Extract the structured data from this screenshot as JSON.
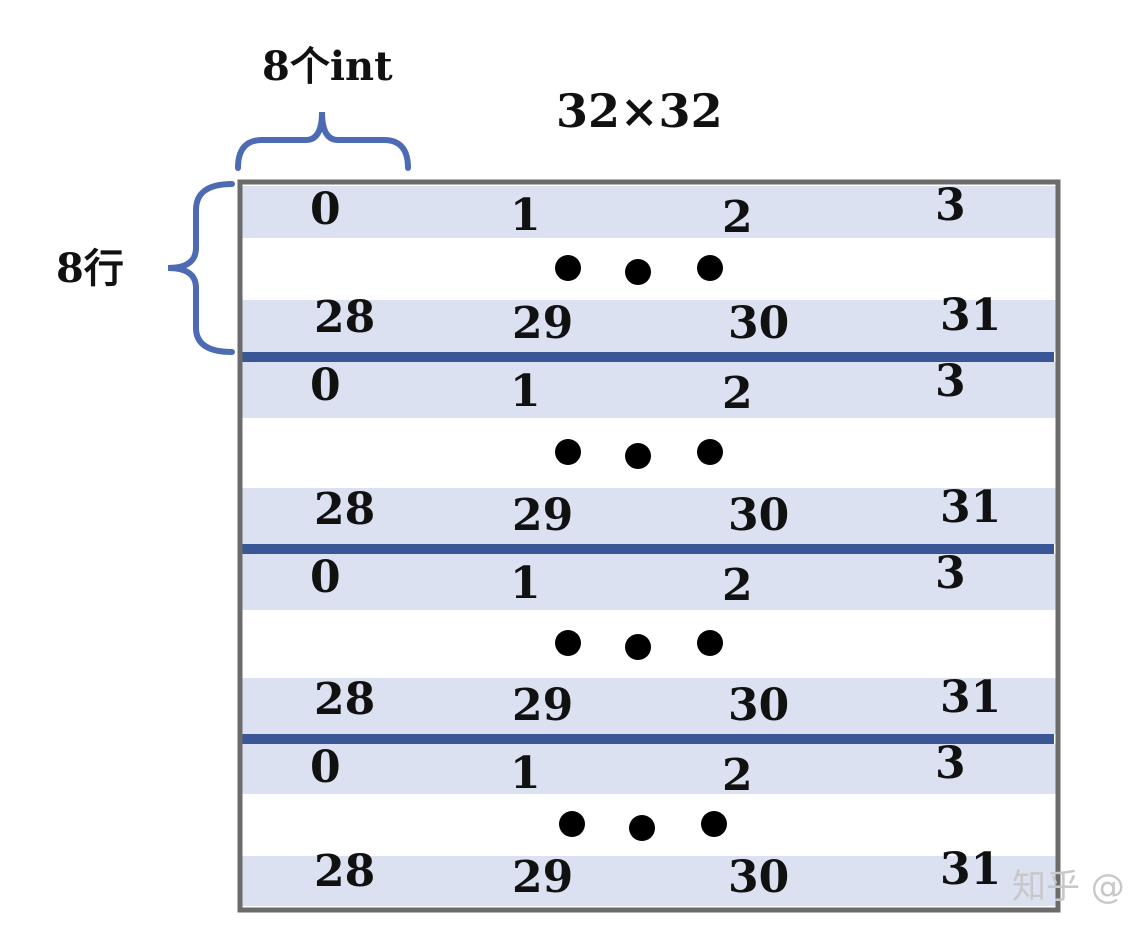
{
  "diagram": {
    "title": "32×32",
    "col_group_label": "8个int",
    "row_group_label": "8行",
    "blocks": [
      {
        "top_row": [
          "0",
          "1",
          "2",
          "3"
        ],
        "bottom_row": [
          "28",
          "29",
          "30",
          "31"
        ]
      },
      {
        "top_row": [
          "0",
          "1",
          "2",
          "3"
        ],
        "bottom_row": [
          "28",
          "29",
          "30",
          "31"
        ]
      },
      {
        "top_row": [
          "0",
          "1",
          "2",
          "3"
        ],
        "bottom_row": [
          "28",
          "29",
          "30",
          "31"
        ]
      },
      {
        "top_row": [
          "0",
          "1",
          "2",
          "3"
        ],
        "bottom_row": [
          "28",
          "29",
          "30",
          "31"
        ]
      }
    ],
    "colors": {
      "band": "#dbe1f0",
      "divider": "#3b5696",
      "border": "#6b6b6b",
      "brace": "#4d6bb3",
      "dot": "#000000"
    }
  },
  "watermark": "知乎 @"
}
